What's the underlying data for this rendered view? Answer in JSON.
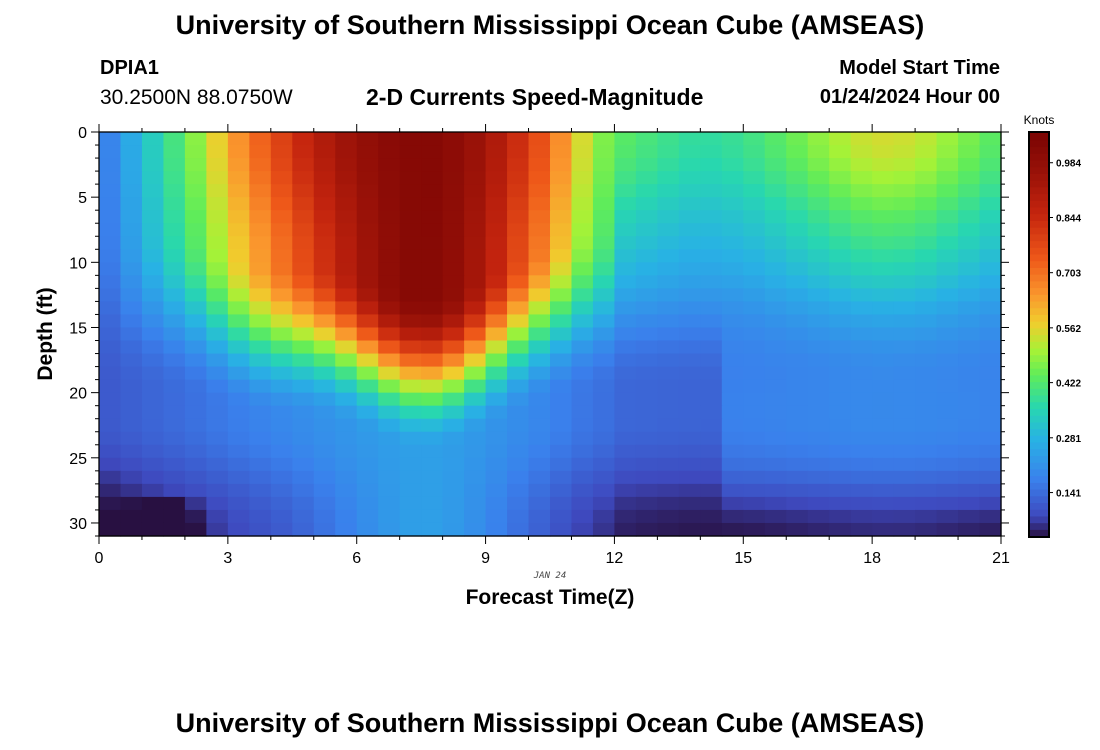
{
  "header": {
    "title": "University of Southern Mississippi Ocean Cube (AMSEAS)",
    "station": "DPIA1",
    "coords": "30.2500N  88.0750W",
    "subtitle": "2-D Currents Speed-Magnitude",
    "start_label": "Model Start Time",
    "start_value": "01/24/2024 Hour 00"
  },
  "footer": {
    "title": "University of Southern Mississippi Ocean Cube (AMSEAS)"
  },
  "chart_data": {
    "type": "heatmap",
    "title": "2-D Currents Speed-Magnitude",
    "xlabel": "Forecast Time(Z)",
    "ylabel": "Depth (ft)",
    "date_label": "JAN 24",
    "xlim": [
      0,
      21
    ],
    "ylim": [
      0,
      31
    ],
    "x_ticks": [
      0,
      3,
      6,
      9,
      12,
      15,
      18,
      21
    ],
    "y_ticks": [
      0,
      5,
      10,
      15,
      20,
      25,
      30
    ],
    "colorbar": {
      "label": "Knots",
      "ticks": [
        "0.984",
        "0.844",
        "0.703",
        "0.562",
        "0.422",
        "0.281",
        "0.141"
      ],
      "tick_values": [
        0.984,
        0.844,
        0.703,
        0.562,
        0.422,
        0.281,
        0.141
      ],
      "min": 0.03,
      "max": 1.06
    },
    "surface_speed_by_hour": [
      {
        "hour": 0,
        "speed": 0.15
      },
      {
        "hour": 0.5,
        "speed": 0.22
      },
      {
        "hour": 1,
        "speed": 0.3
      },
      {
        "hour": 1.5,
        "speed": 0.37
      },
      {
        "hour": 2,
        "speed": 0.44
      },
      {
        "hour": 2.5,
        "speed": 0.52
      },
      {
        "hour": 3,
        "speed": 0.62
      },
      {
        "hour": 4,
        "speed": 0.76
      },
      {
        "hour": 5,
        "speed": 0.88
      },
      {
        "hour": 6,
        "speed": 0.97
      },
      {
        "hour": 7,
        "speed": 1.02
      },
      {
        "hour": 8,
        "speed": 1.02
      },
      {
        "hour": 9,
        "speed": 0.94
      },
      {
        "hour": 10,
        "speed": 0.8
      },
      {
        "hour": 10.5,
        "speed": 0.72
      },
      {
        "hour": 11,
        "speed": 0.6
      },
      {
        "hour": 11.5,
        "speed": 0.5
      },
      {
        "hour": 12,
        "speed": 0.44
      },
      {
        "hour": 13,
        "speed": 0.4
      },
      {
        "hour": 14,
        "speed": 0.37
      },
      {
        "hour": 15,
        "speed": 0.39
      },
      {
        "hour": 16,
        "speed": 0.44
      },
      {
        "hour": 17,
        "speed": 0.5
      },
      {
        "hour": 18,
        "speed": 0.55
      },
      {
        "hour": 19,
        "speed": 0.54
      },
      {
        "hour": 20,
        "speed": 0.48
      },
      {
        "hour": 21,
        "speed": 0.42
      }
    ]
  }
}
